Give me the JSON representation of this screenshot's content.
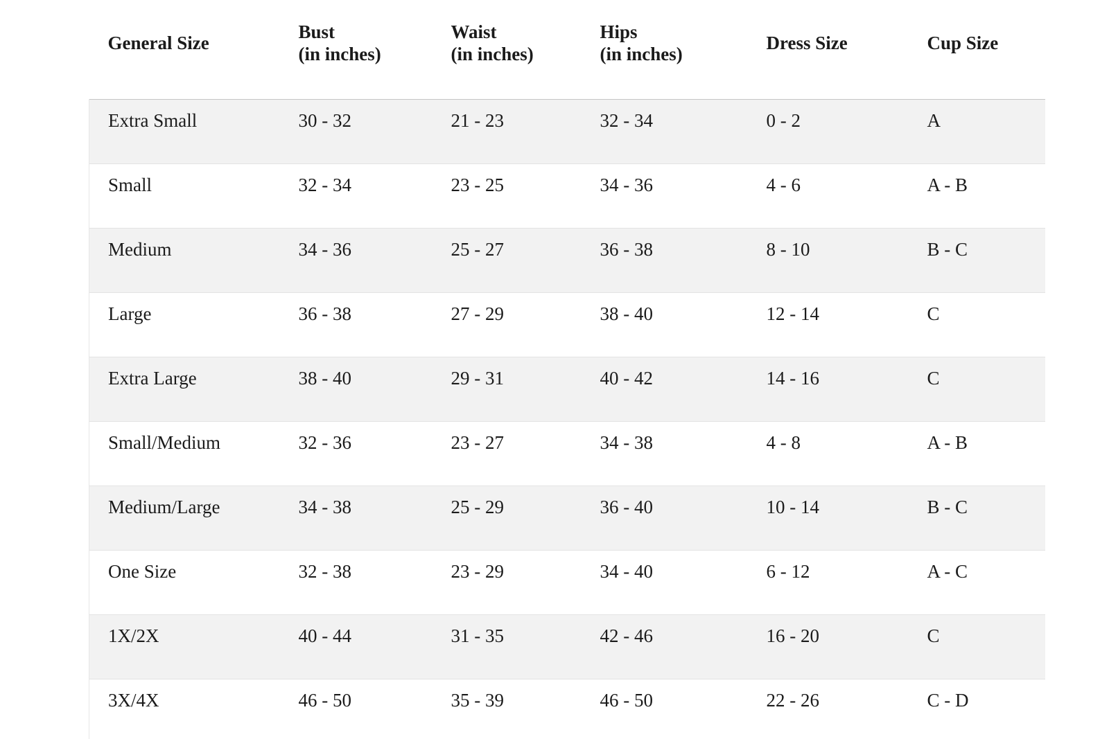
{
  "chart_data": {
    "type": "table",
    "columns": [
      {
        "label": "General Size",
        "sub": ""
      },
      {
        "label": "Bust",
        "sub": "(in inches)"
      },
      {
        "label": "Waist",
        "sub": "(in inches)"
      },
      {
        "label": "Hips",
        "sub": "(in inches)"
      },
      {
        "label": "Dress Size",
        "sub": ""
      },
      {
        "label": "Cup Size",
        "sub": ""
      }
    ],
    "rows": [
      [
        "Extra Small",
        "30 - 32",
        "21 - 23",
        "32 - 34",
        "0 - 2",
        "A"
      ],
      [
        "Small",
        "32 - 34",
        "23 - 25",
        "34 - 36",
        "4 - 6",
        "A - B"
      ],
      [
        "Medium",
        "34 - 36",
        "25 - 27",
        "36 - 38",
        "8 - 10",
        "B - C"
      ],
      [
        "Large",
        "36 - 38",
        "27 - 29",
        "38 - 40",
        "12 - 14",
        "C"
      ],
      [
        "Extra Large",
        "38 - 40",
        "29 - 31",
        "40 - 42",
        "14 - 16",
        "C"
      ],
      [
        "Small/Medium",
        "32 - 36",
        "23 - 27",
        "34 - 38",
        "4 - 8",
        "A - B"
      ],
      [
        "Medium/Large",
        "34 - 38",
        "25 - 29",
        "36 - 40",
        "10 - 14",
        "B - C"
      ],
      [
        "One Size",
        "32 - 38",
        "23 - 29",
        "34 - 40",
        "6 - 12",
        "A - C"
      ],
      [
        "1X/2X",
        "40 - 44",
        "31 - 35",
        "42 - 46",
        "16 - 20",
        "C"
      ],
      [
        "3X/4X",
        "46 - 50",
        "35 - 39",
        "46 - 50",
        "22 - 26",
        "C - D"
      ]
    ],
    "layout": {
      "stripe_color": "#f2f2f2",
      "row_border_color": "#e3e3e3",
      "top_border_color": "#c6c6c6",
      "text_color": "#1b1b1b",
      "grid": "horizontal-only",
      "stripes": "odd-rows-gray"
    }
  }
}
